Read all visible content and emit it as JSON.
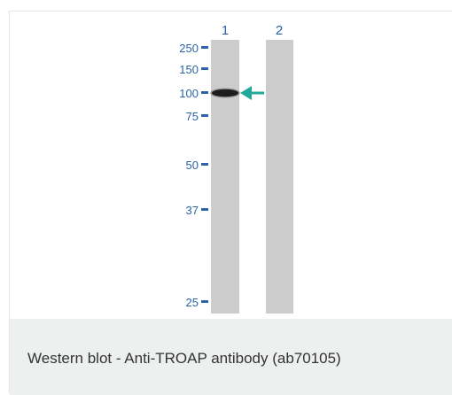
{
  "colors": {
    "label_blue": "#2a63a8",
    "lane_gray": "#cccccc",
    "band_black": "#111111",
    "arrow_teal": "#20a898",
    "caption_bg": "#eef0f0",
    "caption_text": "#333333"
  },
  "blot": {
    "lanes": [
      {
        "label": "1",
        "has_band": true
      },
      {
        "label": "2",
        "has_band": false
      }
    ],
    "markers": [
      "250",
      "150",
      "100",
      "75",
      "50",
      "37",
      "25"
    ],
    "band_marker": "100",
    "arrow_icon": "arrow-left-icon"
  },
  "caption": {
    "text": "Western blot - Anti-TROAP antibody (ab70105)"
  }
}
